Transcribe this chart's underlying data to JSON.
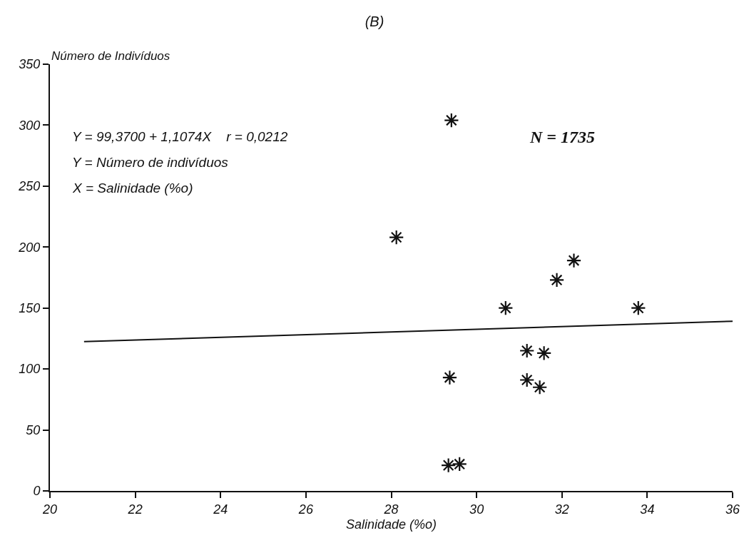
{
  "chart_data": {
    "type": "scatter",
    "title": "(B)",
    "xlabel": "Salinidade (%o)",
    "ylabel": "Número de Indivíduos",
    "xlim": [
      20,
      36
    ],
    "xticks": [
      20,
      22,
      24,
      26,
      28,
      30,
      32,
      34,
      36
    ],
    "ylim": [
      0,
      350
    ],
    "yticks": [
      0,
      50,
      100,
      150,
      200,
      250,
      300,
      350
    ],
    "marker": "cross",
    "series": [
      {
        "color": "#111111",
        "x": [
          29.41,
          28.12,
          29.37,
          29.34,
          29.6,
          30.68,
          31.18,
          31.18,
          31.58,
          31.48,
          31.88,
          32.28,
          33.79
        ],
        "values": [
          304,
          208,
          93,
          21,
          22,
          150,
          115,
          91,
          113,
          85,
          173,
          189,
          150
        ]
      },
      {
        "type": "line",
        "color": "#111111",
        "marker": "none",
        "line_style": "solid",
        "x": [
          20.8,
          36
        ],
        "values": [
          122.4,
          139.2
        ]
      }
    ],
    "annotations": [
      "Y = 99,3700 + 1,1074X    r = 0,0212",
      "Y = Número de indivíduos",
      "X = Salinidade (%o)",
      "N = 1735"
    ]
  }
}
